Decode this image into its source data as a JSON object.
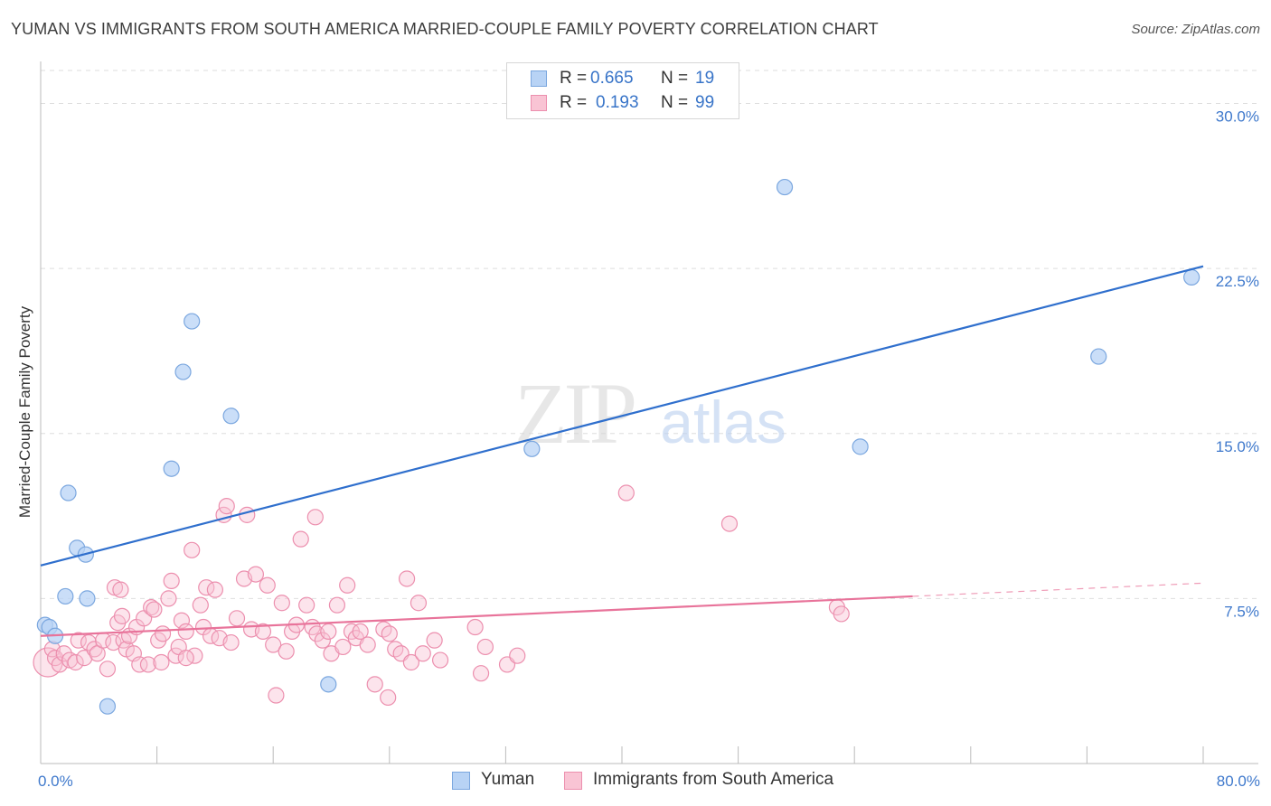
{
  "title": "YUMAN VS IMMIGRANTS FROM SOUTH AMERICA MARRIED-COUPLE FAMILY POVERTY CORRELATION CHART",
  "source": "Source: ZipAtlas.com",
  "watermark": {
    "zip": "ZIP",
    "atlas": "atlas"
  },
  "legend_top": [
    {
      "r_label": "R =",
      "r_value": "0.665",
      "n_label": "N =",
      "n_value": "19"
    },
    {
      "r_label": "R =",
      "r_value": "0.193",
      "n_label": "N =",
      "n_value": "99"
    }
  ],
  "legend_bottom": [
    {
      "label": "Yuman"
    },
    {
      "label": "Immigrants from South America"
    }
  ],
  "colors": {
    "yuman_fill": "#b8d3f5",
    "yuman_stroke": "#7ba7df",
    "yuman_line": "#2f6fcd",
    "sa_fill": "#f9c4d4",
    "sa_stroke": "#ec8fae",
    "sa_line": "#e8739a",
    "axis_text": "#3f79cc",
    "grid": "#dedede"
  },
  "chart_data": {
    "type": "scatter",
    "title": "YUMAN VS IMMIGRANTS FROM SOUTH AMERICA MARRIED-COUPLE FAMILY POVERTY CORRELATION CHART",
    "xlabel": "",
    "ylabel": "Married-Couple Family Poverty",
    "xlim": [
      0,
      80
    ],
    "ylim": [
      0,
      31.5
    ],
    "x_tick_labels": [
      "0.0%",
      "80.0%"
    ],
    "y_ticks": [
      {
        "value": 7.5,
        "label": "7.5%"
      },
      {
        "value": 15.0,
        "label": "15.0%"
      },
      {
        "value": 22.5,
        "label": "22.5%"
      },
      {
        "value": 30.0,
        "label": "30.0%"
      }
    ],
    "series": [
      {
        "name": "Yuman",
        "r": 0.665,
        "n": 19,
        "trend": {
          "x0": 0,
          "y0": 9.0,
          "x1": 80,
          "y1": 22.6,
          "dash_to": null
        },
        "points": [
          {
            "x": 0.3,
            "y": 6.3
          },
          {
            "x": 0.6,
            "y": 6.2
          },
          {
            "x": 1.0,
            "y": 5.8
          },
          {
            "x": 1.7,
            "y": 7.6
          },
          {
            "x": 1.9,
            "y": 12.3
          },
          {
            "x": 2.5,
            "y": 9.8
          },
          {
            "x": 3.1,
            "y": 9.5
          },
          {
            "x": 3.2,
            "y": 7.5
          },
          {
            "x": 4.6,
            "y": 2.6
          },
          {
            "x": 9.0,
            "y": 13.4
          },
          {
            "x": 9.8,
            "y": 17.8
          },
          {
            "x": 10.4,
            "y": 20.1
          },
          {
            "x": 13.1,
            "y": 15.8
          },
          {
            "x": 19.8,
            "y": 3.6
          },
          {
            "x": 33.8,
            "y": 14.3
          },
          {
            "x": 51.2,
            "y": 26.2
          },
          {
            "x": 56.4,
            "y": 14.4
          },
          {
            "x": 72.8,
            "y": 18.5
          },
          {
            "x": 79.2,
            "y": 22.1
          }
        ]
      },
      {
        "name": "Immigrants from South America",
        "r": 0.193,
        "n": 99,
        "trend": {
          "x0": 0,
          "y0": 5.8,
          "x1": 60,
          "y1": 7.6,
          "dash_to": {
            "x": 80,
            "y": 8.2
          }
        },
        "points": [
          {
            "x": 0.5,
            "y": 4.6,
            "big": true
          },
          {
            "x": 0.8,
            "y": 5.2
          },
          {
            "x": 1.0,
            "y": 4.8
          },
          {
            "x": 1.3,
            "y": 4.5
          },
          {
            "x": 1.6,
            "y": 5.0
          },
          {
            "x": 2.0,
            "y": 4.7
          },
          {
            "x": 2.4,
            "y": 4.6
          },
          {
            "x": 2.6,
            "y": 5.6
          },
          {
            "x": 3.0,
            "y": 4.8
          },
          {
            "x": 3.3,
            "y": 5.5
          },
          {
            "x": 3.7,
            "y": 5.2
          },
          {
            "x": 3.9,
            "y": 5.0
          },
          {
            "x": 4.3,
            "y": 5.6
          },
          {
            "x": 4.6,
            "y": 4.3
          },
          {
            "x": 5.0,
            "y": 5.5
          },
          {
            "x": 5.1,
            "y": 8.0
          },
          {
            "x": 5.3,
            "y": 6.4
          },
          {
            "x": 5.6,
            "y": 6.7
          },
          {
            "x": 5.7,
            "y": 5.6
          },
          {
            "x": 5.9,
            "y": 5.2
          },
          {
            "x": 6.1,
            "y": 5.8
          },
          {
            "x": 6.4,
            "y": 5.0
          },
          {
            "x": 6.6,
            "y": 6.2
          },
          {
            "x": 6.8,
            "y": 4.5
          },
          {
            "x": 7.1,
            "y": 6.6
          },
          {
            "x": 7.4,
            "y": 4.5
          },
          {
            "x": 7.6,
            "y": 7.1
          },
          {
            "x": 7.8,
            "y": 7.0
          },
          {
            "x": 8.1,
            "y": 5.6
          },
          {
            "x": 8.4,
            "y": 5.9
          },
          {
            "x": 8.8,
            "y": 7.5
          },
          {
            "x": 9.0,
            "y": 8.3
          },
          {
            "x": 9.3,
            "y": 4.9
          },
          {
            "x": 9.5,
            "y": 5.3
          },
          {
            "x": 9.7,
            "y": 6.5
          },
          {
            "x": 10.0,
            "y": 6.0
          },
          {
            "x": 10.4,
            "y": 9.7
          },
          {
            "x": 10.6,
            "y": 4.9
          },
          {
            "x": 11.0,
            "y": 7.2
          },
          {
            "x": 11.2,
            "y": 6.2
          },
          {
            "x": 11.4,
            "y": 8.0
          },
          {
            "x": 11.7,
            "y": 5.8
          },
          {
            "x": 12.0,
            "y": 7.9
          },
          {
            "x": 12.3,
            "y": 5.7
          },
          {
            "x": 12.6,
            "y": 11.3
          },
          {
            "x": 12.8,
            "y": 11.7
          },
          {
            "x": 13.1,
            "y": 5.5
          },
          {
            "x": 13.5,
            "y": 6.6
          },
          {
            "x": 14.0,
            "y": 8.4
          },
          {
            "x": 14.2,
            "y": 11.3
          },
          {
            "x": 14.5,
            "y": 6.1
          },
          {
            "x": 14.8,
            "y": 8.6
          },
          {
            "x": 15.3,
            "y": 6.0
          },
          {
            "x": 15.6,
            "y": 8.1
          },
          {
            "x": 16.0,
            "y": 5.4
          },
          {
            "x": 16.2,
            "y": 3.1
          },
          {
            "x": 16.6,
            "y": 7.3
          },
          {
            "x": 16.9,
            "y": 5.1
          },
          {
            "x": 17.3,
            "y": 6.0
          },
          {
            "x": 17.6,
            "y": 6.3
          },
          {
            "x": 17.9,
            "y": 10.2
          },
          {
            "x": 18.3,
            "y": 7.2
          },
          {
            "x": 18.7,
            "y": 6.2
          },
          {
            "x": 19.0,
            "y": 5.9
          },
          {
            "x": 19.4,
            "y": 5.6
          },
          {
            "x": 19.8,
            "y": 6.0
          },
          {
            "x": 20.0,
            "y": 5.0
          },
          {
            "x": 20.4,
            "y": 7.2
          },
          {
            "x": 20.8,
            "y": 5.3
          },
          {
            "x": 21.1,
            "y": 8.1
          },
          {
            "x": 21.4,
            "y": 6.0
          },
          {
            "x": 21.7,
            "y": 5.7
          },
          {
            "x": 22.0,
            "y": 6.0
          },
          {
            "x": 22.5,
            "y": 5.4
          },
          {
            "x": 23.0,
            "y": 3.6
          },
          {
            "x": 23.6,
            "y": 6.1
          },
          {
            "x": 24.0,
            "y": 5.9
          },
          {
            "x": 24.4,
            "y": 5.2
          },
          {
            "x": 24.8,
            "y": 5.0
          },
          {
            "x": 25.2,
            "y": 8.4
          },
          {
            "x": 25.5,
            "y": 4.6
          },
          {
            "x": 26.0,
            "y": 7.3
          },
          {
            "x": 26.3,
            "y": 5.0
          },
          {
            "x": 27.1,
            "y": 5.6
          },
          {
            "x": 27.5,
            "y": 4.7
          },
          {
            "x": 29.9,
            "y": 6.2
          },
          {
            "x": 30.3,
            "y": 4.1
          },
          {
            "x": 30.6,
            "y": 5.3
          },
          {
            "x": 32.1,
            "y": 4.5
          },
          {
            "x": 32.8,
            "y": 4.9
          },
          {
            "x": 23.9,
            "y": 3.0
          },
          {
            "x": 18.9,
            "y": 11.2
          },
          {
            "x": 10.0,
            "y": 4.8
          },
          {
            "x": 40.3,
            "y": 12.3
          },
          {
            "x": 47.4,
            "y": 10.9
          },
          {
            "x": 54.8,
            "y": 7.1
          },
          {
            "x": 55.1,
            "y": 6.8
          },
          {
            "x": 5.5,
            "y": 7.9
          },
          {
            "x": 8.3,
            "y": 4.6
          }
        ]
      }
    ],
    "legend_position": "top-center"
  }
}
